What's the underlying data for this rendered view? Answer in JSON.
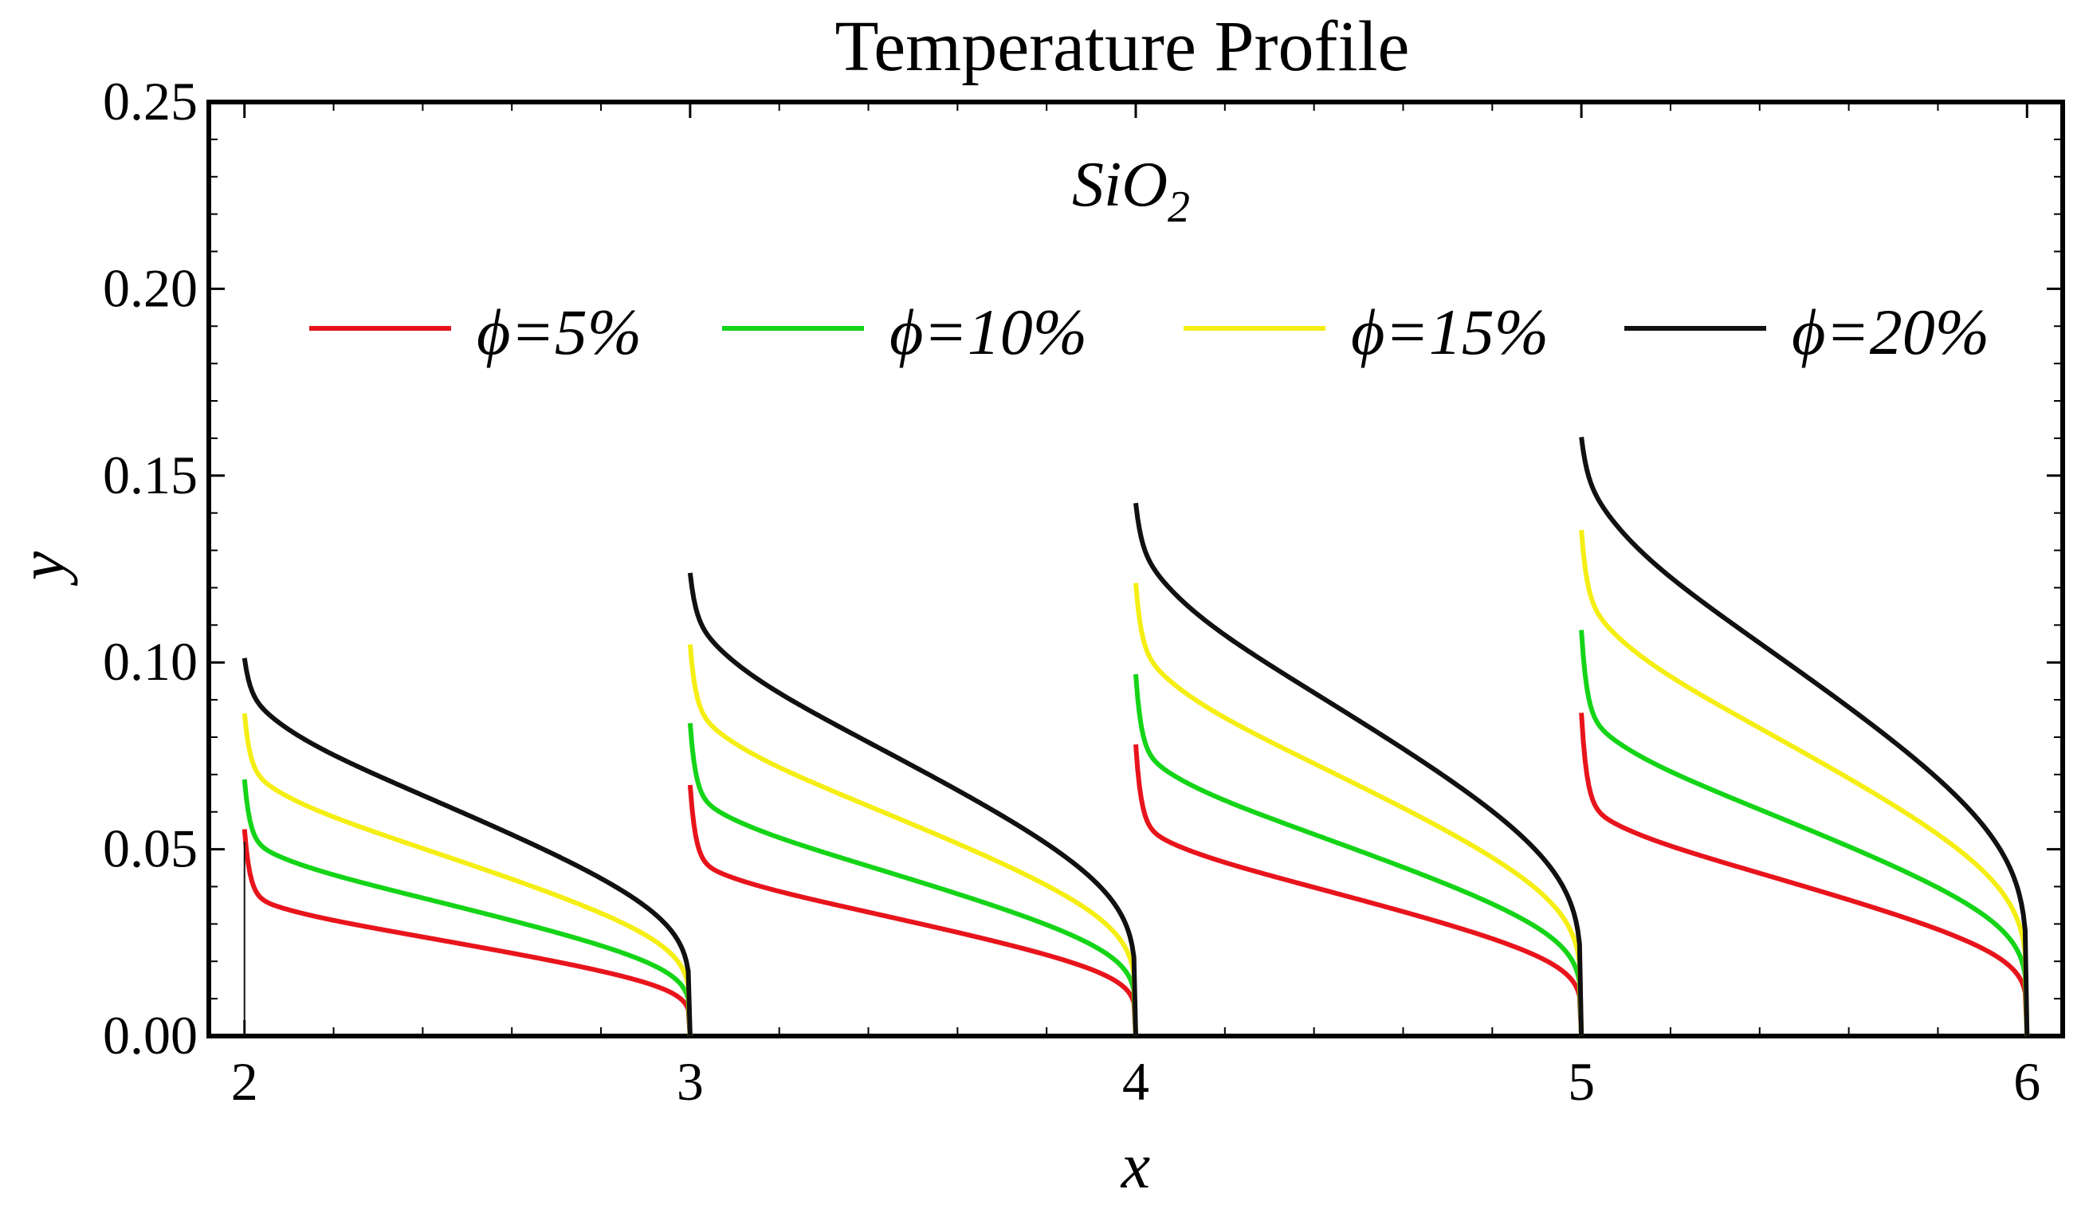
{
  "chart_data": {
    "type": "line",
    "title": "Temperature Profile",
    "annotation_base": "SiO",
    "annotation_sub": "2",
    "xlabel": "x",
    "ylabel": "y",
    "xlim": [
      1.92,
      6.08
    ],
    "ylim": [
      0,
      0.25
    ],
    "x_ticks": [
      2,
      3,
      4,
      5,
      6
    ],
    "x_tick_labels": [
      "2",
      "3",
      "4",
      "5",
      "6"
    ],
    "y_ticks": [
      0,
      0.05,
      0.1,
      0.15,
      0.2,
      0.25
    ],
    "y_tick_labels": [
      "0.00",
      "0.05",
      "0.10",
      "0.15",
      "0.20",
      "0.25"
    ],
    "grid": false,
    "legend_position": "top",
    "segments": [
      {
        "x_start": 2,
        "x_end": 3
      },
      {
        "x_start": 3,
        "x_end": 4
      },
      {
        "x_start": 4,
        "x_end": 5
      },
      {
        "x_start": 5,
        "x_end": 6
      }
    ],
    "series": [
      {
        "name": "ϕ=5%",
        "color": "#e8141c",
        "peaks": [
          0.052,
          0.063,
          0.073,
          0.081
        ],
        "mid_values": [
          0.028,
          0.035,
          0.042,
          0.046
        ]
      },
      {
        "name": "ϕ=10%",
        "color": "#15d418",
        "peaks": [
          0.064,
          0.078,
          0.09,
          0.101
        ],
        "mid_values": [
          0.039,
          0.048,
          0.057,
          0.064
        ]
      },
      {
        "name": "ϕ=15%",
        "color": "#f5ee14",
        "peaks": [
          0.08,
          0.097,
          0.112,
          0.125
        ],
        "mid_values": [
          0.053,
          0.065,
          0.077,
          0.087
        ]
      },
      {
        "name": "ϕ=20%",
        "color": "#111111",
        "peaks": [
          0.093,
          0.114,
          0.131,
          0.147
        ],
        "mid_values": [
          0.068,
          0.083,
          0.097,
          0.111
        ]
      }
    ]
  }
}
